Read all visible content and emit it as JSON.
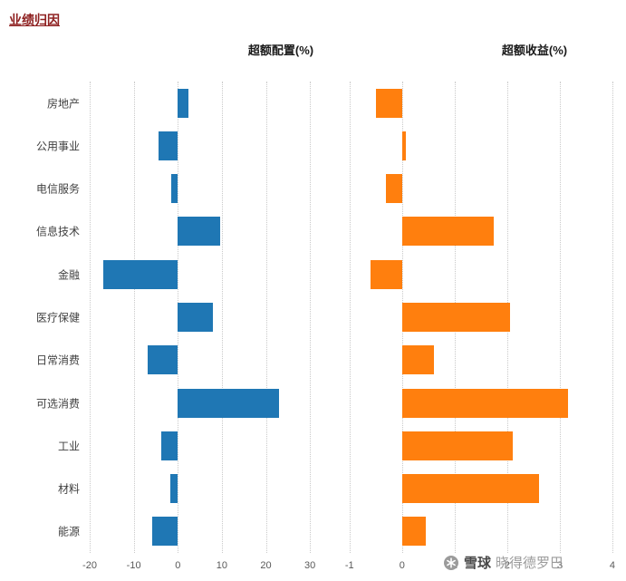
{
  "page": {
    "title": "业绩归因"
  },
  "watermark": {
    "icon": "snowball-logo",
    "brand": "雪球",
    "user": "晓得德罗巴"
  },
  "chart_data": [
    {
      "type": "bar",
      "orientation": "horizontal",
      "title": "超额配置(%)",
      "categories": [
        "房地产",
        "公用事业",
        "电信服务",
        "信息技术",
        "金融",
        "医疗保健",
        "日常消费",
        "可选消费",
        "工业",
        "材料",
        "能源"
      ],
      "values": [
        2.5,
        -4.3,
        -1.5,
        9.7,
        -17,
        8,
        -6.8,
        23,
        -3.7,
        -1.6,
        -5.8
      ],
      "color": "#1f77b4",
      "xlim": [
        -20,
        31
      ],
      "xticks": [
        -20,
        -10,
        0,
        10,
        20,
        30
      ],
      "grid": true,
      "legend": "none"
    },
    {
      "type": "bar",
      "orientation": "horizontal",
      "title": "超额收益(%)",
      "categories": [
        "房地产",
        "公用事业",
        "电信服务",
        "信息技术",
        "金融",
        "医疗保健",
        "日常消费",
        "可选消费",
        "工业",
        "材料",
        "能源"
      ],
      "values": [
        -0.5,
        0.07,
        -0.3,
        1.75,
        -0.6,
        2.05,
        0.6,
        3.15,
        2.1,
        2.6,
        0.45
      ],
      "color": "#ff7f0e",
      "xlim": [
        -1.22,
        4.07
      ],
      "xticks": [
        -1,
        0,
        1,
        2,
        3,
        4
      ],
      "grid": true,
      "legend": "none"
    }
  ]
}
